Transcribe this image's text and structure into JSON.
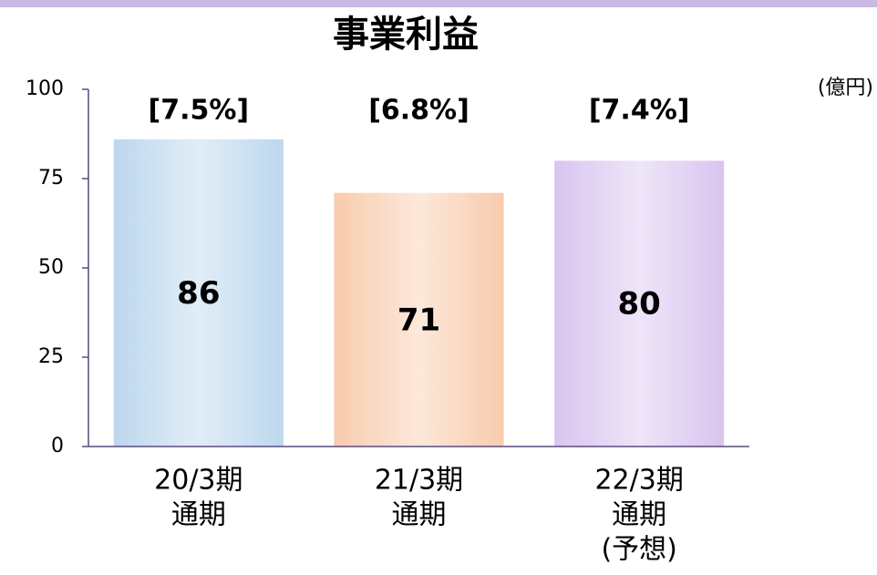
{
  "chart_data": {
    "type": "bar",
    "title": "事業利益",
    "unit": "(億円)",
    "categories": [
      [
        "20/3期",
        "通期"
      ],
      [
        "21/3期",
        "通期"
      ],
      [
        "22/3期",
        "通期",
        "(予想)"
      ]
    ],
    "values": [
      86,
      71,
      80
    ],
    "annotations": [
      "[7.5%]",
      "[6.8%]",
      "[7.4%]"
    ],
    "colors": [
      "#bdd7ee",
      "#f8cbad",
      "#d9c5f0"
    ],
    "ylim": [
      0,
      100
    ],
    "yticks": [
      0,
      25,
      50,
      75,
      100
    ],
    "grid": false
  }
}
